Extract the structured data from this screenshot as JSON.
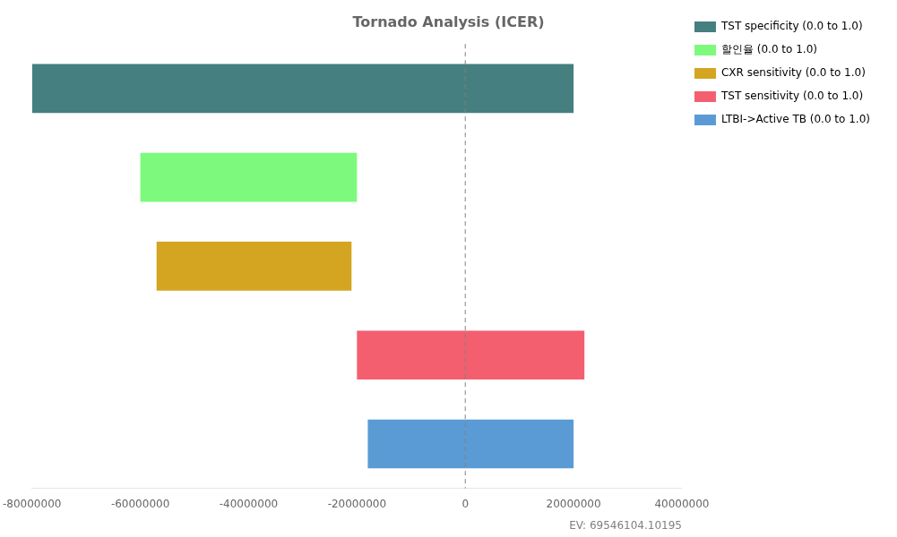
{
  "chart_data": {
    "type": "bar",
    "title": "Tornado Analysis (ICER)",
    "orientation": "horizontal",
    "categories": [
      "TST specificity (0.0 to 1.0)",
      "할인율 (0.0 to 1.0)",
      "CXR sensitivity (0.0 to 1.0)",
      "TST sensitivity (0.0 to 1.0)",
      "LTBI->Active TB (0.0 to 1.0)"
    ],
    "values": [
      [
        -80000000,
        20000000
      ],
      [
        -60000000,
        -20000000
      ],
      [
        -57000000,
        -21000000
      ],
      [
        -20000000,
        22000000
      ],
      [
        -18000000,
        20000000
      ]
    ],
    "colors": [
      "#457f7f",
      "#7dfa7d",
      "#d4a520",
      "#f45f6f",
      "#5b9bd5"
    ],
    "xlim": [
      -80000000,
      40000000
    ],
    "xticks": [
      -80000000,
      -60000000,
      -40000000,
      -20000000,
      0,
      20000000,
      40000000
    ],
    "vline_x": 0,
    "annotation": "EV: 69546104.10195",
    "grid": false,
    "legend": "right",
    "tick_labels": "x"
  }
}
